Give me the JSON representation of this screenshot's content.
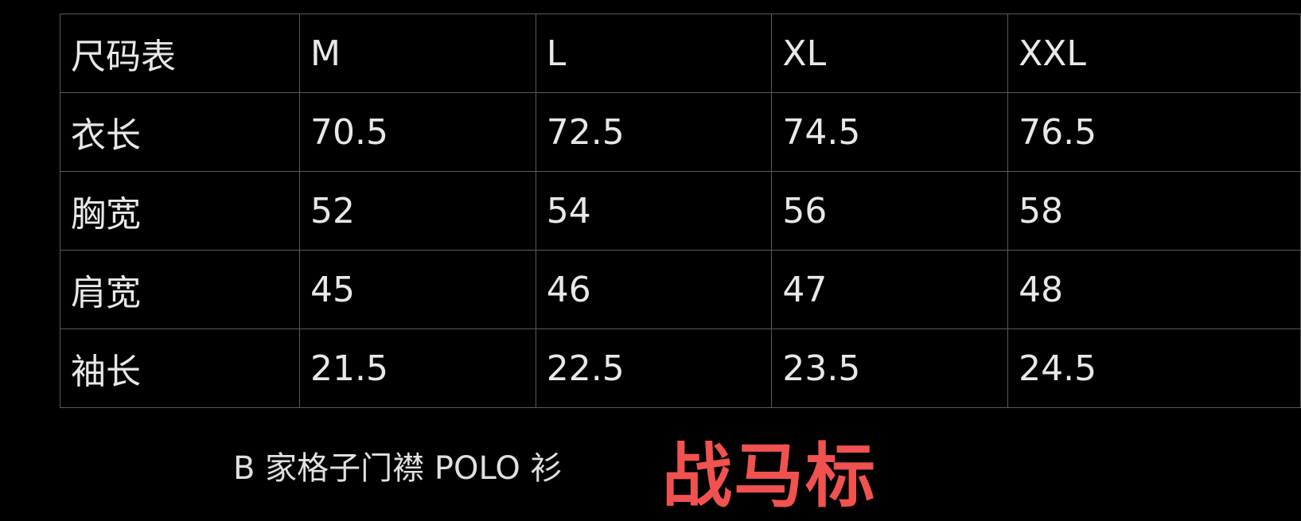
{
  "table": {
    "header": [
      "尺码表",
      "M",
      "L",
      "XL",
      "XXL"
    ],
    "rows": [
      [
        "衣长",
        "70.5",
        "72.5",
        "74.5",
        "76.5"
      ],
      [
        "胸宽",
        "52",
        "54",
        "56",
        "58"
      ],
      [
        "肩宽",
        "45",
        "46",
        "47",
        "48"
      ],
      [
        "袖长",
        "21.5",
        "22.5",
        "23.5",
        "24.5"
      ]
    ]
  },
  "caption": "B 家格子门襟 POLO 衫",
  "brand_label": "战马标",
  "colors": {
    "background": "#000000",
    "text": "#e8e8e8",
    "brand": "#f0524f",
    "grid": "#5a5a5a"
  }
}
